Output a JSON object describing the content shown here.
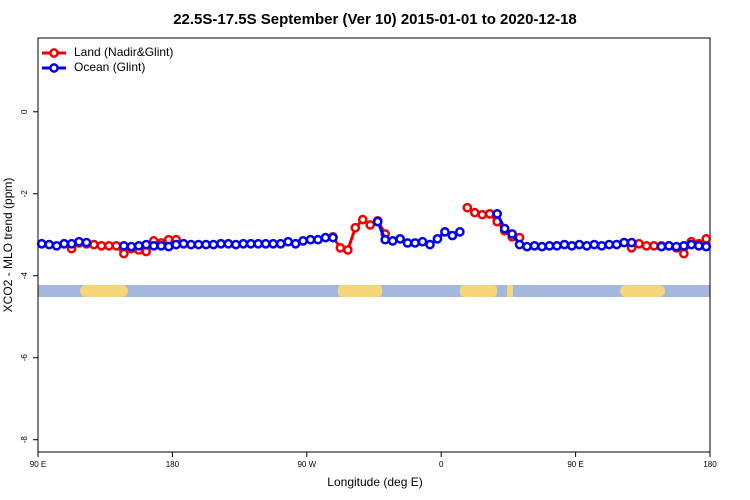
{
  "chart_data": {
    "type": "line",
    "title": "22.5S-17.5S September (Ver 10)   2015-01-01 to 2020-12-18",
    "xlabel": "Longitude (deg E)",
    "ylabel": "XCO2 - MLO trend (ppm)",
    "xlim": [
      90,
      540
    ],
    "ylim": [
      -8.3,
      1.8
    ],
    "xticks": [
      {
        "value": 90,
        "label": "90 E"
      },
      180,
      {
        "value": 270,
        "label": "90 W"
      },
      {
        "value": 360,
        "label": "0"
      },
      {
        "value": 450,
        "label": "90 E"
      },
      {
        "value": 540,
        "label": "180"
      }
    ],
    "yticks": [
      0,
      -2,
      -4,
      -6,
      -8
    ],
    "legend": "top-left",
    "x": [
      92.5,
      97.5,
      102.5,
      107.5,
      112.5,
      117.5,
      122.5,
      127.5,
      132.5,
      137.5,
      142.5,
      147.5,
      152.5,
      157.5,
      162.5,
      167.5,
      172.5,
      177.5,
      182.5,
      187.5,
      192.5,
      197.5,
      202.5,
      207.5,
      212.5,
      217.5,
      222.5,
      227.5,
      232.5,
      237.5,
      242.5,
      247.5,
      252.5,
      257.5,
      262.5,
      267.5,
      272.5,
      277.5,
      282.5,
      287.5,
      292.5,
      297.5,
      302.5,
      307.5,
      312.5,
      317.5,
      322.5,
      327.5,
      332.5,
      337.5,
      342.5,
      347.5,
      352.5,
      357.5,
      362.5,
      367.5,
      372.5,
      377.5,
      382.5,
      387.5,
      392.5,
      397.5,
      402.5,
      407.5,
      412.5,
      417.5,
      422.5,
      427.5,
      432.5,
      437.5,
      442.5,
      447.5,
      452.5,
      457.5,
      462.5,
      467.5,
      472.5,
      477.5,
      482.5,
      487.5,
      492.5,
      497.5,
      502.5,
      507.5,
      512.5,
      517.5,
      522.5,
      527.5,
      532.5,
      537.5
    ],
    "series": [
      {
        "name": "Land (Nadir&Glint)",
        "color": "#ee0000",
        "values": [
          null,
          null,
          null,
          null,
          -3.34,
          -3.2,
          -3.22,
          -3.24,
          -3.27,
          -3.27,
          -3.27,
          -3.46,
          -3.34,
          -3.37,
          -3.41,
          -3.15,
          -3.2,
          -3.12,
          -3.12,
          null,
          null,
          null,
          null,
          null,
          null,
          null,
          null,
          null,
          null,
          null,
          null,
          null,
          null,
          null,
          null,
          null,
          null,
          null,
          null,
          -3.05,
          -3.32,
          -3.37,
          -2.83,
          -2.63,
          -2.76,
          -2.66,
          -2.98,
          null,
          null,
          null,
          null,
          null,
          null,
          null,
          null,
          null,
          null,
          -2.34,
          -2.46,
          -2.51,
          -2.49,
          -2.68,
          -2.9,
          -3.05,
          -3.07,
          null,
          null,
          null,
          null,
          null,
          null,
          null,
          null,
          null,
          null,
          null,
          null,
          null,
          null,
          -3.32,
          -3.22,
          -3.27,
          -3.27,
          -3.27,
          -3.27,
          -3.32,
          -3.46,
          -3.17,
          -3.22,
          -3.1
        ]
      },
      {
        "name": "Ocean (Glint)",
        "color": "#0000ee",
        "values": [
          -3.22,
          -3.24,
          -3.27,
          -3.22,
          -3.22,
          -3.17,
          -3.19,
          null,
          null,
          null,
          null,
          -3.27,
          -3.29,
          -3.27,
          -3.24,
          -3.27,
          -3.27,
          -3.29,
          -3.24,
          -3.22,
          -3.24,
          -3.24,
          -3.24,
          -3.24,
          -3.22,
          -3.22,
          -3.24,
          -3.22,
          -3.22,
          -3.22,
          -3.22,
          -3.22,
          -3.22,
          -3.17,
          -3.22,
          -3.15,
          -3.12,
          -3.12,
          -3.07,
          -3.07,
          null,
          null,
          null,
          null,
          null,
          -2.68,
          -3.12,
          -3.15,
          -3.1,
          -3.2,
          -3.2,
          -3.17,
          -3.24,
          -3.1,
          -2.93,
          -3.02,
          -2.93,
          null,
          null,
          null,
          null,
          -2.49,
          -2.85,
          -2.98,
          -3.24,
          -3.29,
          -3.27,
          -3.29,
          -3.27,
          -3.27,
          -3.24,
          -3.27,
          -3.24,
          -3.27,
          -3.24,
          -3.27,
          -3.24,
          -3.24,
          -3.19,
          -3.19,
          null,
          null,
          null,
          -3.29,
          -3.27,
          -3.29,
          -3.27,
          -3.24,
          -3.27,
          -3.29
        ]
      }
    ]
  }
}
